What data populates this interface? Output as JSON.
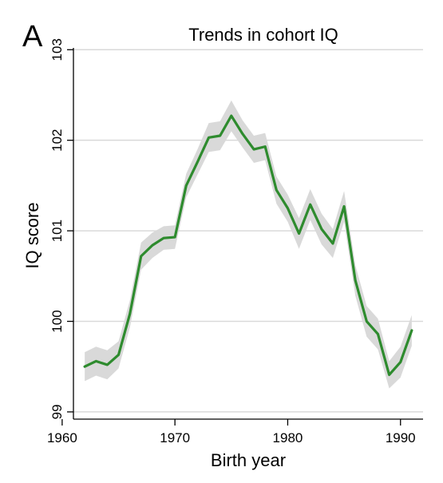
{
  "panel_label": "A",
  "chart_data": {
    "type": "line",
    "title": "Trends in cohort IQ",
    "xlabel": "Birth year",
    "ylabel": "IQ score",
    "xlim": [
      1961,
      1992
    ],
    "ylim": [
      98.92,
      103.02
    ],
    "x_ticks": [
      1960,
      1970,
      1980,
      1990
    ],
    "y_ticks": [
      99,
      100,
      101,
      102,
      103
    ],
    "grid": true,
    "legend": "none",
    "colors": {
      "line": "#2e8b2e",
      "band": "#d9d9d9",
      "grid": "#d9d9d9",
      "axis": "#000000"
    },
    "series": [
      {
        "x": [
          1962,
          1963,
          1964,
          1965,
          1966,
          1967,
          1968,
          1969,
          1970,
          1971,
          1972,
          1973,
          1974,
          1975,
          1976,
          1977,
          1978,
          1979,
          1980,
          1981,
          1982,
          1983,
          1984,
          1985,
          1986,
          1987,
          1988,
          1989,
          1990,
          1991
        ],
        "y": [
          99.5,
          99.56,
          99.52,
          99.63,
          100.08,
          100.72,
          100.84,
          100.92,
          100.93,
          101.5,
          101.76,
          102.03,
          102.05,
          102.27,
          102.07,
          101.9,
          101.93,
          101.45,
          101.25,
          100.97,
          101.29,
          101.02,
          100.86,
          101.27,
          100.45,
          100.0,
          99.86,
          99.41,
          99.55,
          99.9
        ],
        "ci_lower": [
          99.34,
          99.4,
          99.36,
          99.48,
          99.93,
          100.57,
          100.7,
          100.79,
          100.8,
          101.37,
          101.62,
          101.87,
          101.89,
          102.1,
          101.92,
          101.75,
          101.78,
          101.3,
          101.1,
          100.8,
          101.12,
          100.85,
          100.7,
          101.1,
          100.28,
          99.83,
          99.69,
          99.26,
          99.38,
          99.73
        ],
        "ci_upper": [
          99.66,
          99.72,
          99.68,
          99.78,
          100.23,
          100.87,
          100.98,
          101.05,
          101.06,
          101.63,
          101.9,
          102.19,
          102.21,
          102.44,
          102.22,
          102.05,
          102.08,
          101.6,
          101.4,
          101.14,
          101.46,
          101.19,
          101.02,
          101.44,
          100.62,
          100.17,
          100.03,
          99.56,
          99.72,
          100.07
        ]
      }
    ]
  }
}
